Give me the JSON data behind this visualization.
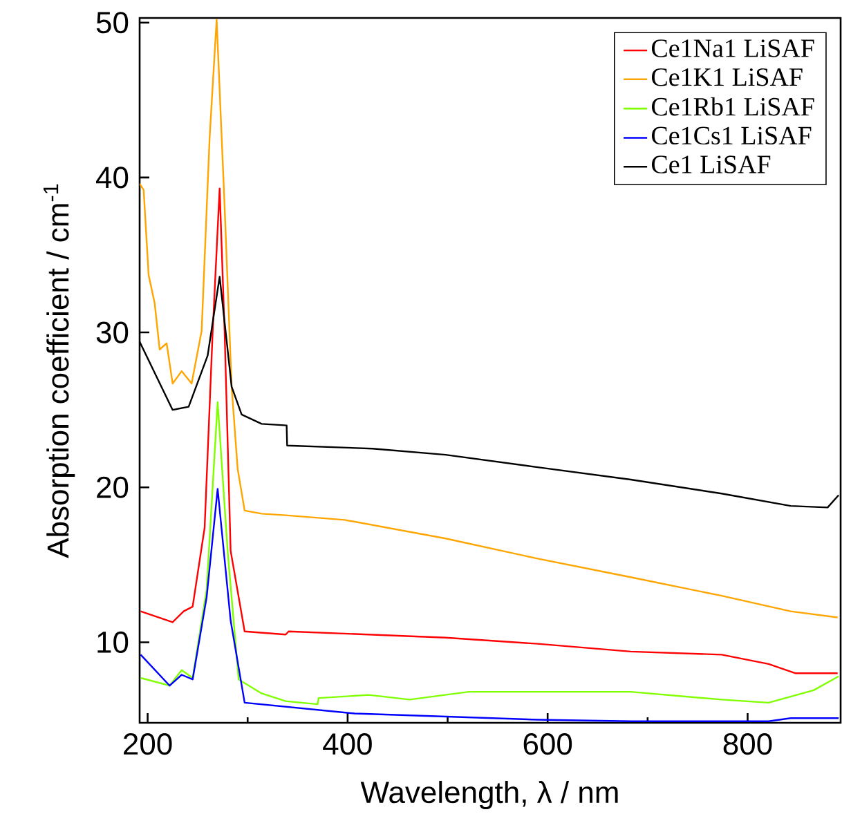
{
  "chart_data": {
    "type": "line",
    "xlabel": "Wavelength, λ / nm",
    "ylabel": "Absorption coefficient / cm$^{-1}$",
    "xlim": [
      192,
      893
    ],
    "ylim": [
      4.8,
      50.3
    ],
    "xticks": [
      200,
      {
        "value": 300,
        "label": null
      },
      400,
      {
        "value": 500,
        "label": null
      },
      600,
      {
        "value": 700,
        "label": null
      },
      800
    ],
    "yticks": [
      10,
      20,
      30,
      40,
      50
    ],
    "legend": "top right",
    "grid": false,
    "marker": "none",
    "line_style": "solid",
    "series": [
      {
        "name": "Ce1Na1 LiSAF",
        "color": "#ff0000",
        "x": [
          193,
          225,
          236,
          245,
          257,
          265,
          272,
          277,
          283,
          297,
          338,
          341,
          498,
          590,
          683,
          774,
          821,
          848,
          890
        ],
        "values": [
          12.0,
          11.3,
          12.0,
          12.3,
          17.4,
          30.0,
          39.3,
          30.0,
          15.9,
          10.7,
          10.5,
          10.7,
          10.3,
          9.9,
          9.4,
          9.2,
          8.6,
          8.0,
          8.0
        ]
      },
      {
        "name": "Ce1K1 LiSAF",
        "color": "#ffa500",
        "x": [
          192,
          196,
          201,
          207,
          212,
          219,
          225,
          234,
          244,
          254,
          262,
          269,
          277,
          284,
          290,
          297,
          314,
          338,
          397,
          498,
          590,
          683,
          774,
          843,
          890
        ],
        "values": [
          39.6,
          39.2,
          33.7,
          31.9,
          28.9,
          29.3,
          26.7,
          27.5,
          26.7,
          30.1,
          42.6,
          50.2,
          38.1,
          26.5,
          21.2,
          18.5,
          18.3,
          18.2,
          17.9,
          16.7,
          15.4,
          14.2,
          13.0,
          12.0,
          11.6
        ]
      },
      {
        "name": "Ce1Rb1 LiSAF",
        "color": "#80ff00",
        "x": [
          193,
          222,
          234,
          245,
          259,
          270,
          280,
          291,
          314,
          338,
          370,
          371,
          421,
          462,
          521,
          636,
          683,
          774,
          821,
          866,
          891
        ],
        "values": [
          7.7,
          7.2,
          8.2,
          7.7,
          13.4,
          25.5,
          15.9,
          7.6,
          6.7,
          6.2,
          6.0,
          6.4,
          6.6,
          6.3,
          6.8,
          6.8,
          6.8,
          6.3,
          6.1,
          6.9,
          7.8
        ]
      },
      {
        "name": "Ce1Cs1 LiSAF",
        "color": "#0000ff",
        "x": [
          193,
          222,
          234,
          245,
          259,
          270,
          283,
          297,
          407,
          590,
          683,
          821,
          843,
          891
        ],
        "values": [
          9.2,
          7.2,
          7.9,
          7.6,
          12.9,
          19.9,
          11.4,
          6.1,
          5.4,
          5.0,
          4.9,
          4.9,
          5.1,
          5.1
        ]
      },
      {
        "name": "Ce1 LiSAF",
        "color": "#000000",
        "x": [
          192,
          225,
          241,
          260,
          272,
          284,
          294,
          314,
          339,
          339.5,
          425,
          498,
          590,
          683,
          774,
          843,
          880,
          891
        ],
        "values": [
          29.4,
          25.0,
          25.2,
          28.5,
          33.6,
          26.5,
          24.7,
          24.1,
          24.0,
          22.7,
          22.5,
          22.1,
          21.3,
          20.5,
          19.6,
          18.8,
          18.7,
          19.5
        ]
      }
    ]
  }
}
